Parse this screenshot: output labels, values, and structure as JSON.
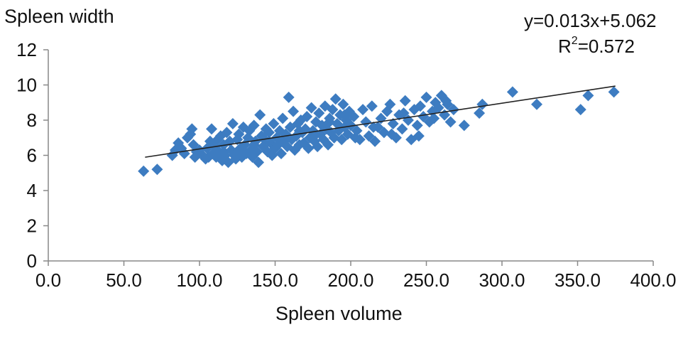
{
  "chart_data": {
    "type": "scatter",
    "title": "",
    "xlabel": "Spleen volume",
    "ylabel": "Spleen width",
    "xlim": [
      0,
      400
    ],
    "ylim": [
      0,
      12
    ],
    "x_ticks": [
      "0.0",
      "50.0",
      "100.0",
      "150.0",
      "200.0",
      "250.0",
      "300.0",
      "350.0",
      "400.0"
    ],
    "y_ticks": [
      "0",
      "2",
      "4",
      "6",
      "8",
      "10",
      "12"
    ],
    "grid": false,
    "marker": "diamond",
    "marker_color": "#3d7cc1",
    "trendline": {
      "equation": "y=0.013x+5.062",
      "r2_prefix": "R",
      "r2_sup": "2",
      "r2_suffix": "=0.572",
      "slope": 0.013,
      "intercept": 5.062,
      "x_range": [
        64,
        375
      ],
      "color": "#222222"
    },
    "points": [
      [
        63,
        5.1
      ],
      [
        72,
        5.2
      ],
      [
        82,
        6.0
      ],
      [
        84,
        6.3
      ],
      [
        86,
        6.7
      ],
      [
        88,
        6.4
      ],
      [
        90,
        6.1
      ],
      [
        92,
        7.0
      ],
      [
        94,
        7.2
      ],
      [
        95,
        7.5
      ],
      [
        96,
        6.6
      ],
      [
        97,
        5.9
      ],
      [
        98,
        6.2
      ],
      [
        100,
        6.3
      ],
      [
        102,
        6.0
      ],
      [
        104,
        5.8
      ],
      [
        105,
        6.4
      ],
      [
        107,
        6.8
      ],
      [
        108,
        7.5
      ],
      [
        109,
        6.1
      ],
      [
        110,
        6.5
      ],
      [
        111,
        5.9
      ],
      [
        112,
        6.9
      ],
      [
        113,
        6.2
      ],
      [
        114,
        7.1
      ],
      [
        115,
        5.7
      ],
      [
        116,
        6.6
      ],
      [
        117,
        6.0
      ],
      [
        118,
        7.3
      ],
      [
        119,
        5.6
      ],
      [
        120,
        6.8
      ],
      [
        121,
        6.3
      ],
      [
        122,
        7.8
      ],
      [
        123,
        6.0
      ],
      [
        124,
        5.8
      ],
      [
        125,
        6.9
      ],
      [
        126,
        7.2
      ],
      [
        127,
        6.4
      ],
      [
        128,
        5.9
      ],
      [
        129,
        7.6
      ],
      [
        130,
        6.6
      ],
      [
        131,
        6.1
      ],
      [
        132,
        7.0
      ],
      [
        133,
        7.4
      ],
      [
        134,
        6.3
      ],
      [
        135,
        5.9
      ],
      [
        136,
        7.7
      ],
      [
        137,
        6.8
      ],
      [
        138,
        6.2
      ],
      [
        139,
        5.6
      ],
      [
        140,
        8.3
      ],
      [
        141,
        7.1
      ],
      [
        142,
        6.5
      ],
      [
        143,
        6.9
      ],
      [
        144,
        7.5
      ],
      [
        145,
        6.2
      ],
      [
        146,
        7.3
      ],
      [
        147,
        6.7
      ],
      [
        148,
        6.0
      ],
      [
        149,
        7.8
      ],
      [
        150,
        6.4
      ],
      [
        151,
        7.0
      ],
      [
        152,
        6.6
      ],
      [
        153,
        7.4
      ],
      [
        154,
        6.1
      ],
      [
        155,
        8.1
      ],
      [
        156,
        6.8
      ],
      [
        157,
        7.2
      ],
      [
        158,
        6.5
      ],
      [
        159,
        9.3
      ],
      [
        160,
        7.6
      ],
      [
        161,
        6.9
      ],
      [
        162,
        8.5
      ],
      [
        163,
        6.3
      ],
      [
        164,
        7.1
      ],
      [
        165,
        7.8
      ],
      [
        166,
        6.6
      ],
      [
        167,
        8.0
      ],
      [
        168,
        7.3
      ],
      [
        169,
        6.7
      ],
      [
        170,
        7.5
      ],
      [
        171,
        8.2
      ],
      [
        172,
        6.4
      ],
      [
        173,
        7.0
      ],
      [
        174,
        8.7
      ],
      [
        175,
        7.4
      ],
      [
        176,
        6.8
      ],
      [
        177,
        7.9
      ],
      [
        178,
        6.5
      ],
      [
        179,
        8.4
      ],
      [
        180,
        7.2
      ],
      [
        181,
        7.7
      ],
      [
        182,
        6.9
      ],
      [
        183,
        8.8
      ],
      [
        184,
        7.5
      ],
      [
        185,
        6.6
      ],
      [
        186,
        8.1
      ],
      [
        187,
        7.3
      ],
      [
        188,
        8.6
      ],
      [
        189,
        7.0
      ],
      [
        190,
        9.2
      ],
      [
        191,
        7.8
      ],
      [
        192,
        7.4
      ],
      [
        193,
        8.3
      ],
      [
        194,
        6.9
      ],
      [
        195,
        8.9
      ],
      [
        196,
        7.6
      ],
      [
        197,
        8.0
      ],
      [
        198,
        7.2
      ],
      [
        199,
        8.5
      ],
      [
        200,
        7.7
      ],
      [
        202,
        8.2
      ],
      [
        204,
        7.4
      ],
      [
        206,
        6.9
      ],
      [
        208,
        8.6
      ],
      [
        210,
        7.9
      ],
      [
        212,
        7.1
      ],
      [
        214,
        8.8
      ],
      [
        216,
        6.8
      ],
      [
        218,
        7.6
      ],
      [
        220,
        8.1
      ],
      [
        222,
        7.3
      ],
      [
        224,
        8.5
      ],
      [
        226,
        8.9
      ],
      [
        228,
        7.8
      ],
      [
        230,
        7.0
      ],
      [
        232,
        8.3
      ],
      [
        234,
        7.5
      ],
      [
        236,
        9.1
      ],
      [
        238,
        8.0
      ],
      [
        240,
        6.9
      ],
      [
        242,
        8.6
      ],
      [
        244,
        7.7
      ],
      [
        246,
        8.8
      ],
      [
        248,
        8.2
      ],
      [
        250,
        9.3
      ],
      [
        252,
        7.9
      ],
      [
        254,
        8.5
      ],
      [
        256,
        9.0
      ],
      [
        258,
        8.7
      ],
      [
        260,
        9.4
      ],
      [
        262,
        8.3
      ],
      [
        264,
        8.9
      ],
      [
        266,
        7.9
      ],
      [
        268,
        8.6
      ],
      [
        275,
        7.7
      ],
      [
        285,
        8.4
      ],
      [
        287,
        8.9
      ],
      [
        307,
        9.6
      ],
      [
        323,
        8.9
      ],
      [
        352,
        8.6
      ],
      [
        357,
        9.4
      ],
      [
        374,
        9.6
      ],
      [
        215,
        7.6
      ],
      [
        227,
        7.2
      ],
      [
        235,
        8.4
      ],
      [
        245,
        7.1
      ],
      [
        255,
        8.1
      ],
      [
        263,
        9.1
      ],
      [
        203,
        7.0
      ],
      [
        186,
        7.9
      ],
      [
        176,
        7.1
      ],
      [
        166,
        7.4
      ],
      [
        156,
        7.0
      ],
      [
        146,
        6.8
      ],
      [
        136,
        6.6
      ],
      [
        126,
        6.3
      ],
      [
        116,
        6.2
      ],
      [
        106,
        5.9
      ],
      [
        196,
        8.3
      ]
    ]
  }
}
